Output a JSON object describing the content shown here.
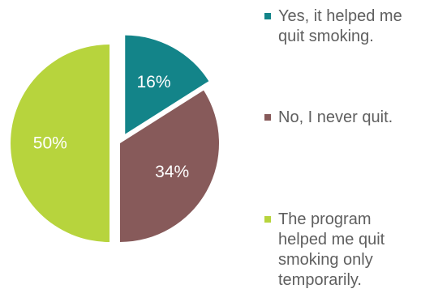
{
  "chart_data": {
    "type": "pie",
    "slices": [
      {
        "label": "Yes, it helped me quit smoking.",
        "value": 16,
        "display": "16%",
        "color": "#138489",
        "exploded": true
      },
      {
        "label": "No, I never quit.",
        "value": 34,
        "display": "34%",
        "color": "#875a5a",
        "exploded": false
      },
      {
        "label": "The program helped me quit smoking only temporarily.",
        "value": 50,
        "display": "50%",
        "color": "#b7d43d",
        "exploded": true
      }
    ],
    "legend_placement": "right"
  }
}
